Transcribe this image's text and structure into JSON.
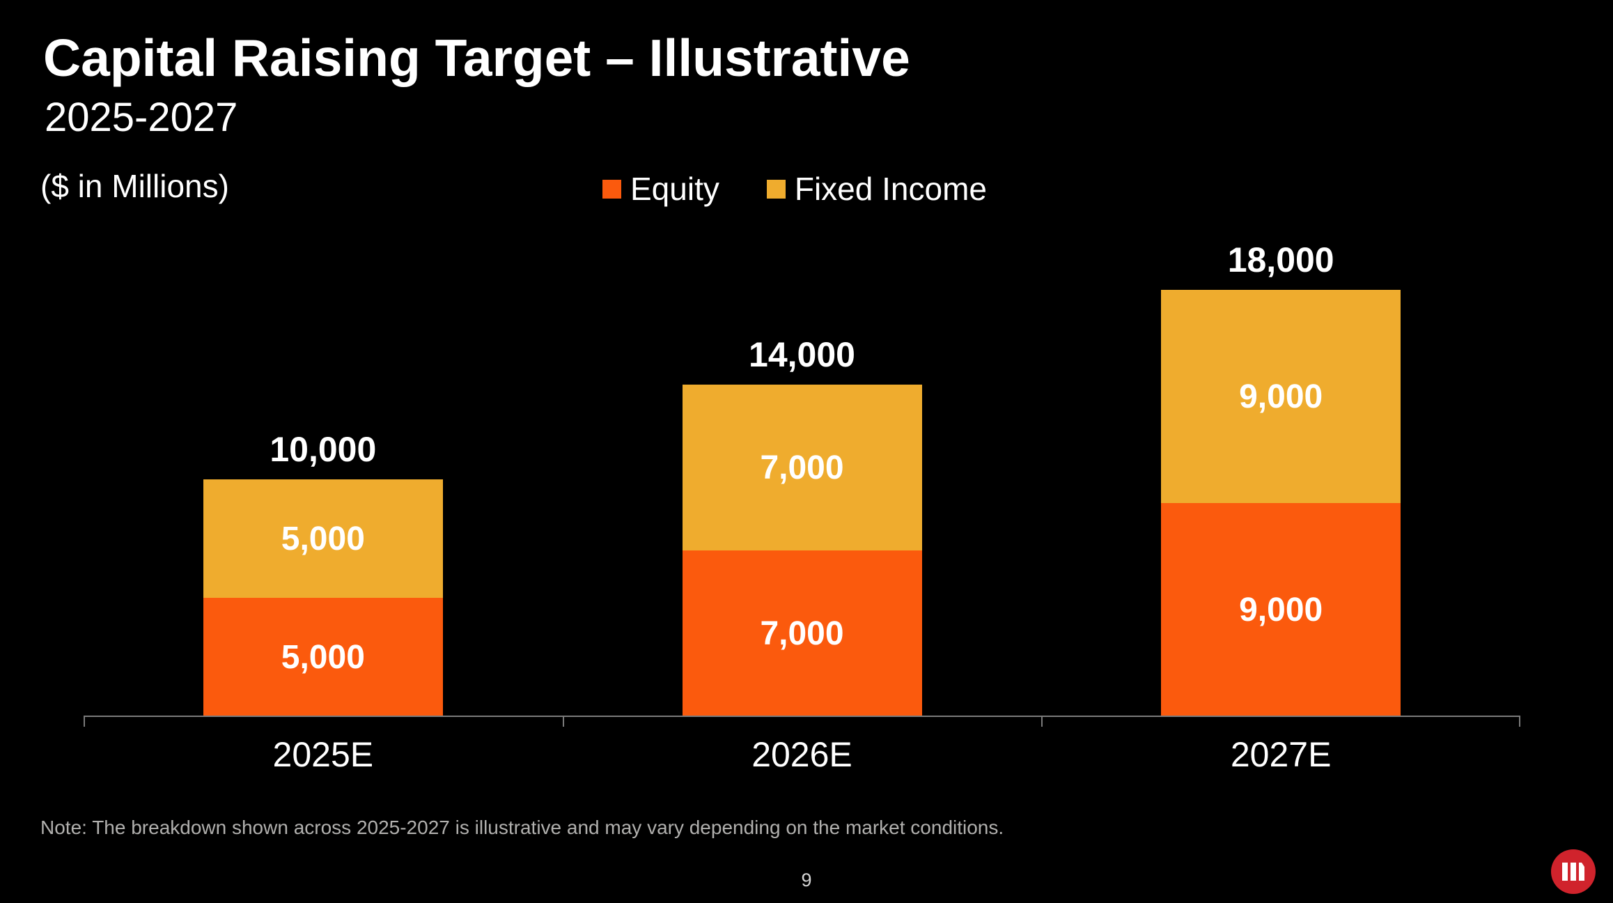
{
  "slide": {
    "title": "Capital Raising Target – Illustrative",
    "subtitle": "2025-2027",
    "units_label": "($ in Millions)",
    "note": "Note: The breakdown shown across 2025-2027 is illustrative and may vary depending on the market conditions.",
    "page_number": "9"
  },
  "colors": {
    "background": "#000000",
    "equity": "#fb5a0d",
    "fixed_income": "#efac2e",
    "axis": "#7b7b7b",
    "text": "#ffffff",
    "note_text": "#b1b0ae",
    "logo_red": "#d0232c"
  },
  "icons": {
    "logo": "three-bars-circle-logo"
  },
  "chart_data": {
    "type": "bar",
    "stacked": true,
    "title": "Capital Raising Target – Illustrative",
    "subtitle": "2025-2027",
    "units": "$ in Millions",
    "categories": [
      "2025E",
      "2026E",
      "2027E"
    ],
    "series": [
      {
        "name": "Equity",
        "color": "#fb5a0d",
        "values": [
          5000,
          7000,
          9000
        ]
      },
      {
        "name": "Fixed Income",
        "color": "#efac2e",
        "values": [
          5000,
          7000,
          9000
        ]
      }
    ],
    "totals": [
      10000,
      14000,
      18000
    ],
    "segment_labels": [
      [
        "5,000",
        "5,000"
      ],
      [
        "7,000",
        "7,000"
      ],
      [
        "9,000",
        "9,000"
      ]
    ],
    "total_labels": [
      "10,000",
      "14,000",
      "18,000"
    ],
    "ylim": [
      0,
      20000
    ],
    "grid": false,
    "legend_position": "top",
    "value_label_format": "#,##0"
  }
}
